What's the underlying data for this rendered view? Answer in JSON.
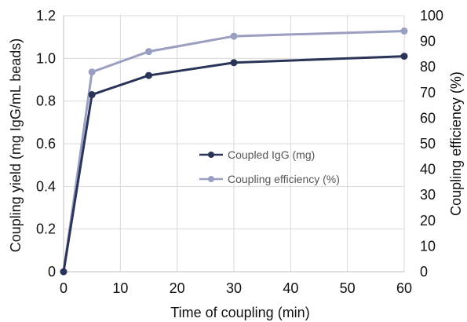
{
  "chart_data": {
    "type": "line",
    "title": "",
    "xlabel": "Time of coupling (min)",
    "ylabel": "Coupling yield (mg IgG/mL beads)",
    "y2label": "Coupling efficiency (%)",
    "xlim": [
      0,
      60
    ],
    "ylim": [
      0,
      1.2
    ],
    "y2lim": [
      0,
      100
    ],
    "x_ticks": [
      0,
      10,
      20,
      30,
      40,
      50,
      60
    ],
    "y_ticks": [
      "0",
      "0.2",
      "0.4",
      "0.6",
      "0.8",
      "1.0",
      "1.2"
    ],
    "y2_ticks": [
      "0",
      "10",
      "20",
      "30",
      "40",
      "50",
      "60",
      "70",
      "80",
      "90",
      "100"
    ],
    "grid": true,
    "legend_position": "center-right",
    "series": [
      {
        "name": "Coupled IgG (mg)",
        "axis": "left",
        "color": "#2a3358",
        "x": [
          0,
          5,
          15,
          30,
          60
        ],
        "values": [
          0,
          0.83,
          0.92,
          0.98,
          1.01
        ]
      },
      {
        "name": "Coupling efficiency (%)",
        "axis": "right",
        "color": "#9a9ec0",
        "x": [
          0,
          5,
          15,
          30,
          60
        ],
        "values": [
          0,
          78,
          86,
          92,
          94
        ]
      }
    ]
  }
}
